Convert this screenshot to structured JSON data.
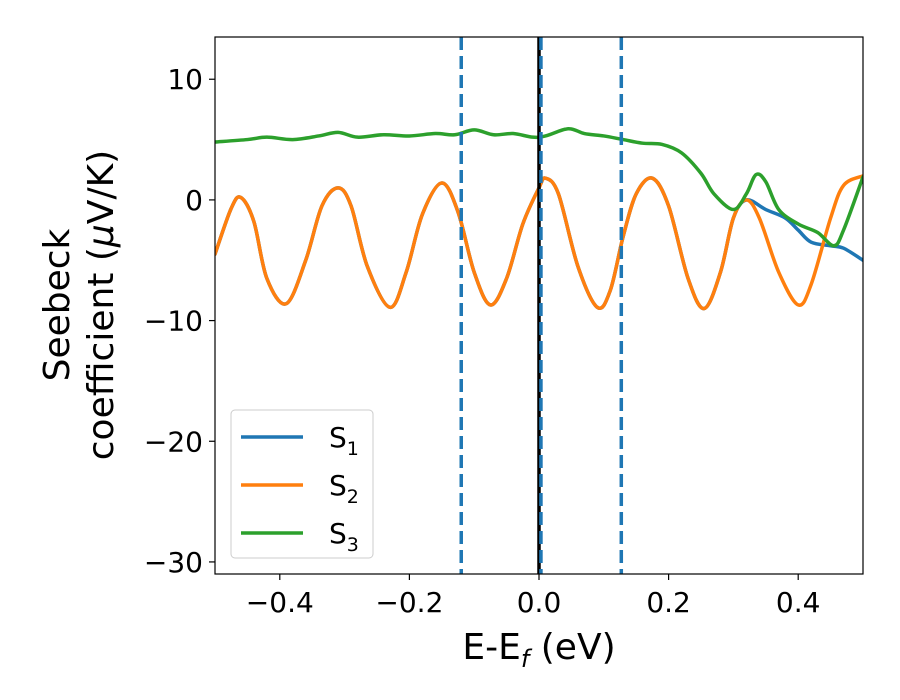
{
  "chart_data": {
    "type": "line",
    "xlabel": {
      "main": "E-E",
      "sub": "f",
      "unit": " (eV)"
    },
    "ylabel": {
      "line1": "Seebeck",
      "line2_main": "coefficient  (",
      "line2_mu": "μ",
      "line2_unit": "V/K)"
    },
    "xlim": [
      -0.5,
      0.5
    ],
    "ylim": [
      -31,
      13.5
    ],
    "x_ticks": [
      {
        "value": -0.4,
        "label": "−0.4"
      },
      {
        "value": -0.2,
        "label": "−0.2"
      },
      {
        "value": 0.0,
        "label": "0.0"
      },
      {
        "value": 0.2,
        "label": "0.2"
      },
      {
        "value": 0.4,
        "label": "0.4"
      }
    ],
    "y_ticks": [
      {
        "value": 10,
        "label": "10"
      },
      {
        "value": 0,
        "label": "0"
      },
      {
        "value": -10,
        "label": "−10"
      },
      {
        "value": -20,
        "label": "−20"
      },
      {
        "value": -30,
        "label": "−30"
      }
    ],
    "vertical_lines": [
      {
        "x": -0.12,
        "style": "dashed",
        "color": "#1f77b4"
      },
      {
        "x": 0.0,
        "style": "solid",
        "color": "#000000"
      },
      {
        "x": 0.003,
        "style": "dashed",
        "color": "#1f77b4"
      },
      {
        "x": 0.127,
        "style": "dashed",
        "color": "#1f77b4"
      }
    ],
    "legend_position": "lower-left",
    "series": [
      {
        "name": "S",
        "sub": "1",
        "color": "#1f77b4",
        "x": [
          -0.5,
          -0.475,
          -0.46,
          -0.44,
          -0.42,
          -0.39,
          -0.36,
          -0.335,
          -0.31,
          -0.29,
          -0.265,
          -0.23,
          -0.205,
          -0.18,
          -0.15,
          -0.125,
          -0.1,
          -0.075,
          -0.05,
          -0.025,
          0.0,
          0.01,
          0.03,
          0.06,
          0.09,
          0.11,
          0.13,
          0.15,
          0.175,
          0.2,
          0.23,
          0.255,
          0.28,
          0.3,
          0.32,
          0.35,
          0.38,
          0.4,
          0.42,
          0.45,
          0.47,
          0.5
        ],
        "y": [
          -4.5,
          -0.7,
          0.2,
          -1.8,
          -6.5,
          -8.6,
          -5.0,
          -0.5,
          1.0,
          -0.5,
          -5.5,
          -8.9,
          -6.0,
          -1.2,
          1.4,
          -1.0,
          -6.0,
          -8.7,
          -6.5,
          -2.0,
          1.0,
          1.8,
          0.5,
          -5.5,
          -8.9,
          -7.5,
          -3.0,
          0.5,
          1.8,
          -0.5,
          -6.5,
          -9.0,
          -6.0,
          -1.5,
          0.0,
          -0.8,
          -1.5,
          -2.5,
          -3.5,
          -3.8,
          -4.0,
          -5.0
        ]
      },
      {
        "name": "S",
        "sub": "2",
        "color": "#ff7f0e",
        "x": [
          -0.5,
          -0.475,
          -0.46,
          -0.44,
          -0.42,
          -0.39,
          -0.36,
          -0.335,
          -0.31,
          -0.29,
          -0.265,
          -0.23,
          -0.205,
          -0.18,
          -0.15,
          -0.125,
          -0.1,
          -0.075,
          -0.05,
          -0.025,
          0.0,
          0.01,
          0.03,
          0.06,
          0.09,
          0.11,
          0.13,
          0.15,
          0.175,
          0.2,
          0.23,
          0.255,
          0.28,
          0.3,
          0.32,
          0.34,
          0.37,
          0.4,
          0.42,
          0.45,
          0.47,
          0.5
        ],
        "y": [
          -4.5,
          -0.7,
          0.2,
          -1.8,
          -6.5,
          -8.6,
          -5.0,
          -0.5,
          1.0,
          -0.5,
          -5.5,
          -8.9,
          -6.0,
          -1.2,
          1.4,
          -1.0,
          -6.0,
          -8.7,
          -6.5,
          -2.0,
          1.0,
          1.8,
          0.5,
          -5.5,
          -8.9,
          -7.5,
          -3.0,
          0.5,
          1.8,
          -0.5,
          -6.5,
          -9.0,
          -6.0,
          -1.5,
          0.0,
          -1.5,
          -6.0,
          -8.7,
          -7.0,
          -1.5,
          1.2,
          2.0
        ]
      },
      {
        "name": "S",
        "sub": "3",
        "color": "#2ca02c",
        "x": [
          -0.5,
          -0.45,
          -0.42,
          -0.38,
          -0.34,
          -0.31,
          -0.28,
          -0.24,
          -0.2,
          -0.16,
          -0.13,
          -0.1,
          -0.07,
          -0.04,
          -0.01,
          0.01,
          0.045,
          0.07,
          0.1,
          0.13,
          0.16,
          0.19,
          0.22,
          0.25,
          0.27,
          0.3,
          0.32,
          0.335,
          0.35,
          0.37,
          0.4,
          0.43,
          0.455,
          0.47,
          0.5
        ],
        "y": [
          4.8,
          5.0,
          5.2,
          5.0,
          5.3,
          5.6,
          5.2,
          5.4,
          5.3,
          5.5,
          5.4,
          5.8,
          5.4,
          5.5,
          5.2,
          5.3,
          5.9,
          5.5,
          5.3,
          5.0,
          4.7,
          4.6,
          3.9,
          2.2,
          0.5,
          -0.8,
          0.5,
          2.1,
          1.5,
          -0.8,
          -2.0,
          -2.7,
          -3.8,
          -2.5,
          1.9
        ]
      }
    ]
  }
}
